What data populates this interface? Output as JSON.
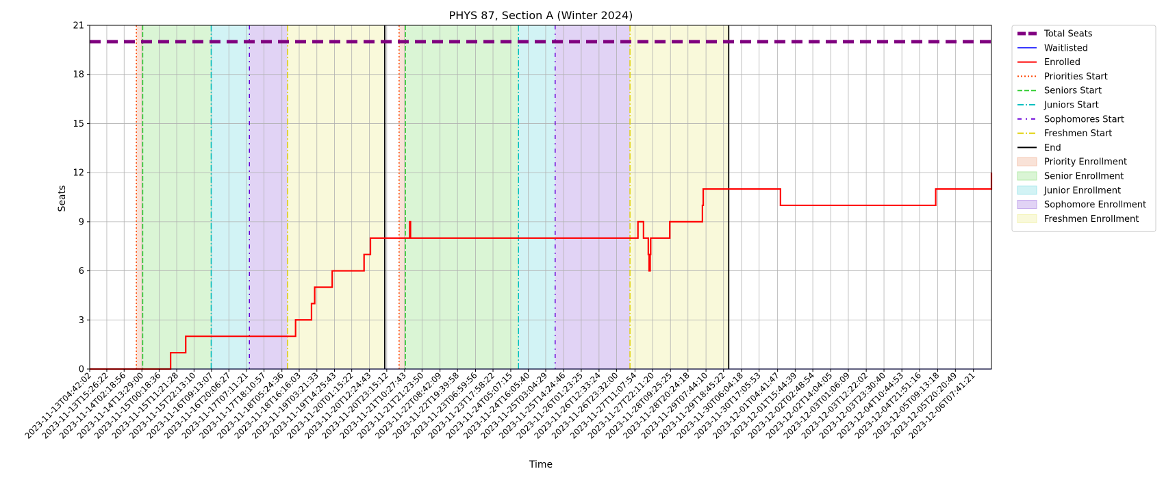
{
  "chart_data": {
    "type": "line",
    "title": "PHYS 87, Section A (Winter 2024)",
    "xlabel": "Time",
    "ylabel": "Seats",
    "ylim": [
      0,
      21
    ],
    "yticks": [
      0,
      3,
      6,
      9,
      12,
      15,
      18,
      21
    ],
    "xlim": [
      "2023-11-13T04:42:02",
      "2023-12-06T19:00:00"
    ],
    "xtick_labels": [
      "2023-11-13T04:42:02",
      "2023-11-13T15:26:22",
      "2023-11-14T02:18:56",
      "2023-11-14T13:29:00",
      "2023-11-15T00:18:36",
      "2023-11-15T11:21:28",
      "2023-11-15T22:13:10",
      "2023-11-16T09:13:07",
      "2023-11-16T20:06:27",
      "2023-11-17T07:11:21",
      "2023-11-17T18:10:57",
      "2023-11-18T05:24:36",
      "2023-11-18T16:16:03",
      "2023-11-19T03:21:33",
      "2023-11-19T14:25:43",
      "2023-11-20T01:15:22",
      "2023-11-20T12:24:43",
      "2023-11-20T23:15:12",
      "2023-11-21T10:27:43",
      "2023-11-21T21:23:50",
      "2023-11-22T08:42:09",
      "2023-11-22T19:39:58",
      "2023-11-23T06:59:56",
      "2023-11-23T17:58:22",
      "2023-11-24T05:07:15",
      "2023-11-24T16:05:40",
      "2023-11-25T03:04:29",
      "2023-11-25T14:24:46",
      "2023-11-26T01:23:25",
      "2023-11-26T12:33:24",
      "2023-11-26T23:32:00",
      "2023-11-27T11:07:54",
      "2023-11-27T22:11:20",
      "2023-11-28T09:25:25",
      "2023-11-28T20:24:18",
      "2023-11-29T07:44:10",
      "2023-11-29T18:45:22",
      "2023-11-30T06:04:18",
      "2023-11-30T17:05:53",
      "2023-12-01T04:41:47",
      "2023-12-01T15:44:39",
      "2023-12-02T02:48:54",
      "2023-12-02T14:04:05",
      "2023-12-03T01:06:09",
      "2023-12-03T12:22:02",
      "2023-12-03T23:30:40",
      "2023-12-04T10:44:53",
      "2023-12-04T21:51:16",
      "2023-12-05T09:13:18",
      "2023-12-05T20:20:49",
      "2023-12-06T07:41:21"
    ],
    "grid": true,
    "legend_position": "outside-right",
    "total_seats": 20,
    "series": [
      {
        "name": "Total Seats",
        "style": "dashed-thick",
        "color": "#800080",
        "x": [
          "2023-11-13T04:42:02",
          "2023-12-06T19:00:00"
        ],
        "y": [
          20,
          20
        ]
      },
      {
        "name": "Waitlisted",
        "style": "solid",
        "color": "#0000ff",
        "x": [
          "2023-11-13T04:42:02",
          "2023-12-06T19:00:00"
        ],
        "y": [
          0,
          0
        ]
      },
      {
        "name": "Enrolled",
        "style": "step",
        "color": "#ff0000",
        "x": [
          "2023-11-13T04:42:02",
          "2023-11-15T07:30:00",
          "2023-11-15T17:00:00",
          "2023-11-18T14:00:00",
          "2023-11-19T00:00:00",
          "2023-11-19T02:00:00",
          "2023-11-19T04:00:00",
          "2023-11-19T13:00:00",
          "2023-11-20T09:00:00",
          "2023-11-20T13:00:00",
          "2023-11-21T13:40:00",
          "2023-11-21T14:10:00",
          "2023-11-27T13:00:00",
          "2023-11-27T16:30:00",
          "2023-11-27T19:30:00",
          "2023-11-27T20:00:00",
          "2023-11-27T20:40:00",
          "2023-11-27T21:00:00",
          "2023-11-28T09:00:00",
          "2023-11-29T05:30:00",
          "2023-11-29T06:00:00",
          "2023-12-01T06:30:00",
          "2023-12-05T08:00:00",
          "2023-12-06T19:00:00"
        ],
        "y": [
          0,
          1,
          2,
          3,
          4,
          5,
          5,
          6,
          7,
          8,
          9,
          8,
          9,
          8,
          7,
          6,
          7,
          8,
          9,
          10,
          11,
          10,
          11,
          12
        ]
      }
    ],
    "phases": [
      {
        "name": "Priorities Start",
        "time": "2023-11-14T10:00:00",
        "color": "#ff4500",
        "style": "dotted"
      },
      {
        "name": "Seniors Start",
        "time": "2023-11-14T14:00:00",
        "color": "#32cd32",
        "style": "dashed"
      },
      {
        "name": "Juniors Start",
        "time": "2023-11-16T09:00:00",
        "color": "#00c0c0",
        "style": "dashdot"
      },
      {
        "name": "Sophomores Start",
        "time": "2023-11-17T09:00:00",
        "color": "#6a00d8",
        "style": "dashdot-sparse"
      },
      {
        "name": "Freshmen Start",
        "time": "2023-11-18T09:00:00",
        "color": "#e0d000",
        "style": "dashdot"
      },
      {
        "name": "End",
        "time": "2023-11-20T22:00:00",
        "color": "#000000",
        "style": "solid"
      },
      {
        "name": "Priorities Start",
        "time": "2023-11-21T07:00:00",
        "color": "#ff4500",
        "style": "dotted"
      },
      {
        "name": "Seniors Start",
        "time": "2023-11-21T11:00:00",
        "color": "#32cd32",
        "style": "dashed"
      },
      {
        "name": "Juniors Start",
        "time": "2023-11-24T10:00:00",
        "color": "#00c0c0",
        "style": "dashdot"
      },
      {
        "name": "Sophomores Start",
        "time": "2023-11-25T09:00:00",
        "color": "#6a00d8",
        "style": "dashdot-sparse"
      },
      {
        "name": "Freshmen Start",
        "time": "2023-11-27T08:00:00",
        "color": "#e0d000",
        "style": "dashdot"
      },
      {
        "name": "End",
        "time": "2023-11-29T22:00:00",
        "color": "#000000",
        "style": "solid"
      }
    ],
    "bands": [
      {
        "name": "Priority Enrollment",
        "start": "2023-11-14T10:00:00",
        "end": "2023-11-14T14:00:00",
        "color": "#f4c6b0"
      },
      {
        "name": "Senior Enrollment",
        "start": "2023-11-14T14:00:00",
        "end": "2023-11-16T09:00:00",
        "color": "#b5ebab"
      },
      {
        "name": "Junior Enrollment",
        "start": "2023-11-16T09:00:00",
        "end": "2023-11-17T09:00:00",
        "color": "#a5e7ec"
      },
      {
        "name": "Sophomore Enrollment",
        "start": "2023-11-17T09:00:00",
        "end": "2023-11-18T09:00:00",
        "color": "#c4a8ec"
      },
      {
        "name": "Freshmen Enrollment",
        "start": "2023-11-18T09:00:00",
        "end": "2023-11-20T22:00:00",
        "color": "#f3f3b5"
      },
      {
        "name": "Priority Enrollment",
        "start": "2023-11-21T07:00:00",
        "end": "2023-11-21T11:00:00",
        "color": "#f4c6b0"
      },
      {
        "name": "Senior Enrollment",
        "start": "2023-11-21T11:00:00",
        "end": "2023-11-24T10:00:00",
        "color": "#b5ebab"
      },
      {
        "name": "Junior Enrollment",
        "start": "2023-11-24T10:00:00",
        "end": "2023-11-25T09:00:00",
        "color": "#a5e7ec"
      },
      {
        "name": "Sophomore Enrollment",
        "start": "2023-11-25T09:00:00",
        "end": "2023-11-27T08:00:00",
        "color": "#c4a8ec"
      },
      {
        "name": "Freshmen Enrollment",
        "start": "2023-11-27T08:00:00",
        "end": "2023-11-29T22:00:00",
        "color": "#f3f3b5"
      }
    ],
    "legend": [
      {
        "label": "Total Seats",
        "kind": "line",
        "color": "#800080",
        "style": "dashed-thick"
      },
      {
        "label": "Waitlisted",
        "kind": "line",
        "color": "#0000ff",
        "style": "solid-thin"
      },
      {
        "label": "Enrolled",
        "kind": "line",
        "color": "#ff0000",
        "style": "solid"
      },
      {
        "label": "Priorities Start",
        "kind": "line",
        "color": "#ff4500",
        "style": "dotted"
      },
      {
        "label": "Seniors Start",
        "kind": "line",
        "color": "#32cd32",
        "style": "dashed"
      },
      {
        "label": "Juniors Start",
        "kind": "line",
        "color": "#00c0c0",
        "style": "dashdot"
      },
      {
        "label": "Sophomores Start",
        "kind": "line",
        "color": "#6a00d8",
        "style": "dashdot-sparse"
      },
      {
        "label": "Freshmen Start",
        "kind": "line",
        "color": "#e0d000",
        "style": "dashdot"
      },
      {
        "label": "End",
        "kind": "line",
        "color": "#000000",
        "style": "solid"
      },
      {
        "label": "Priority Enrollment",
        "kind": "patch",
        "color": "#f4c6b0"
      },
      {
        "label": "Senior Enrollment",
        "kind": "patch",
        "color": "#b5ebab"
      },
      {
        "label": "Junior Enrollment",
        "kind": "patch",
        "color": "#a5e7ec"
      },
      {
        "label": "Sophomore Enrollment",
        "kind": "patch",
        "color": "#c4a8ec"
      },
      {
        "label": "Freshmen Enrollment",
        "kind": "patch",
        "color": "#f3f3b5"
      }
    ]
  }
}
